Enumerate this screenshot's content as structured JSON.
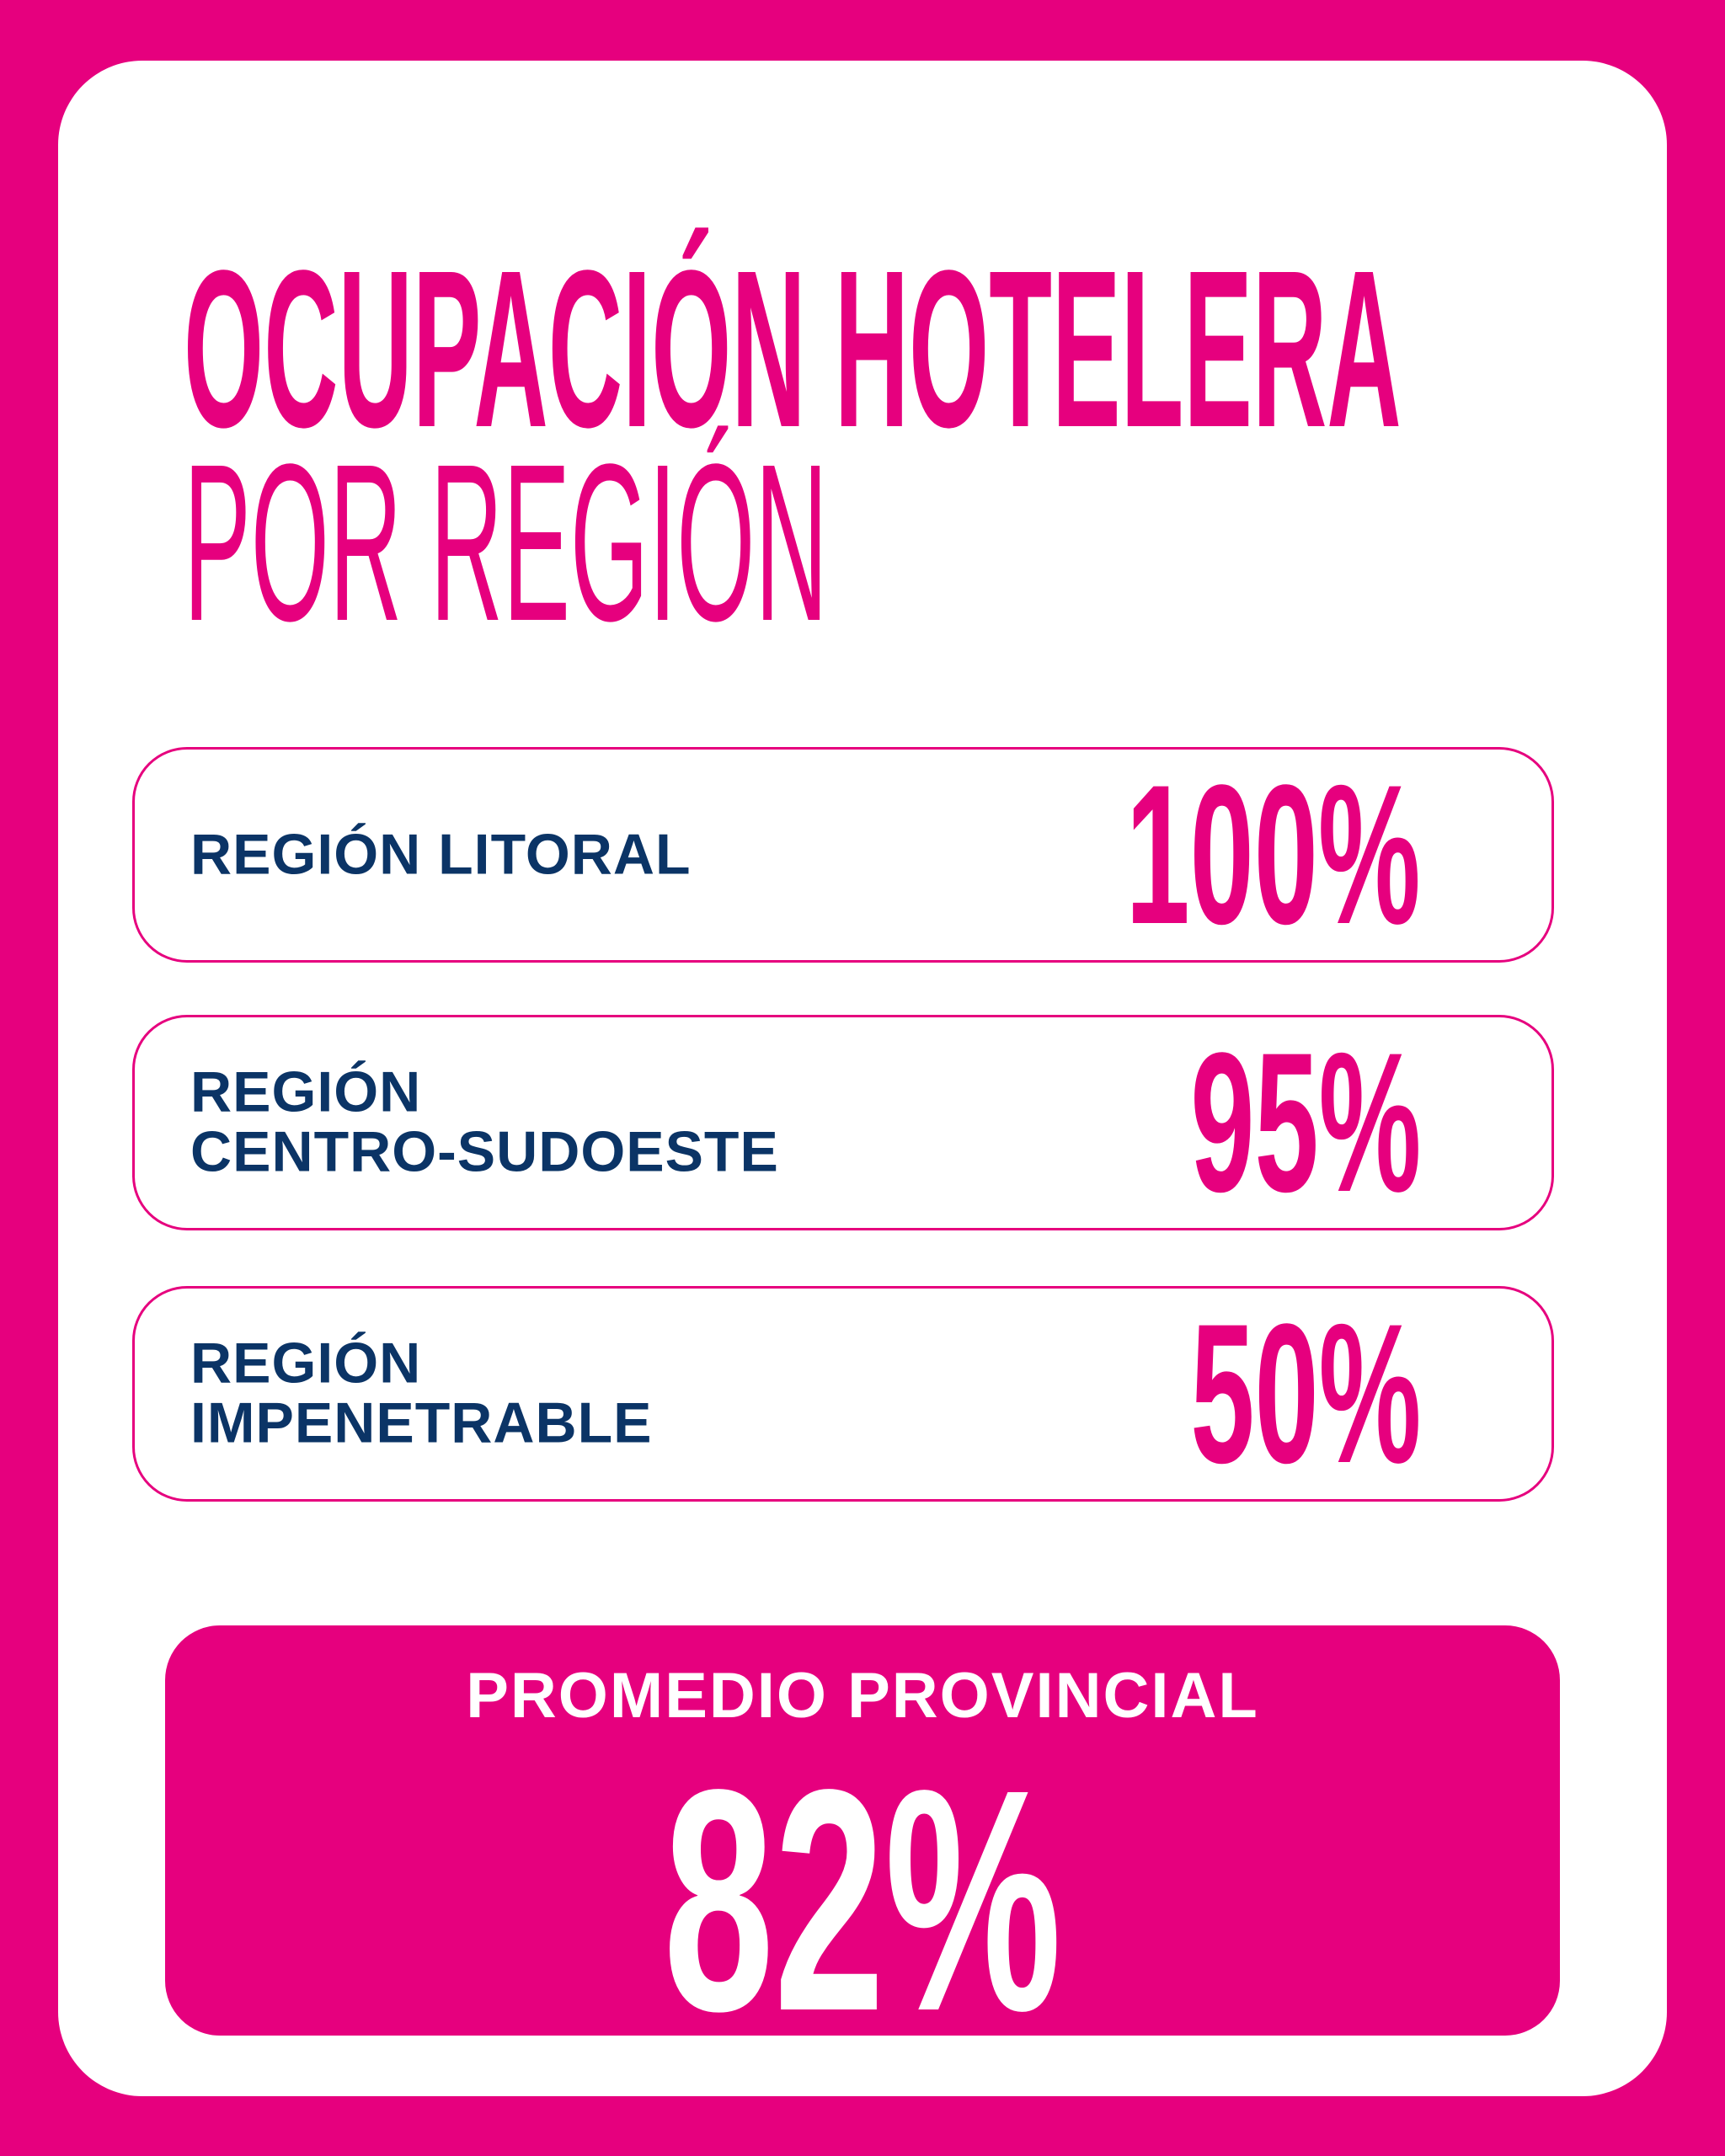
{
  "title": {
    "line1": "OCUPACIÓN HOTELERA",
    "line2": "POR REGIÓN"
  },
  "regions": [
    {
      "label": "REGIÓN LITORAL",
      "value": "100%"
    },
    {
      "label_line1": "REGIÓN",
      "label_line2": "CENTRO-SUDOESTE",
      "value": "95%"
    },
    {
      "label_line1": "REGIÓN",
      "label_line2": "IMPENETRABLE",
      "value": "50%"
    }
  ],
  "average": {
    "label": "PROMEDIO PROVINCIAL",
    "value": "82%"
  },
  "colors": {
    "accent": "#E6007E",
    "text_dark": "#0B3466",
    "background": "#FFFFFF"
  }
}
